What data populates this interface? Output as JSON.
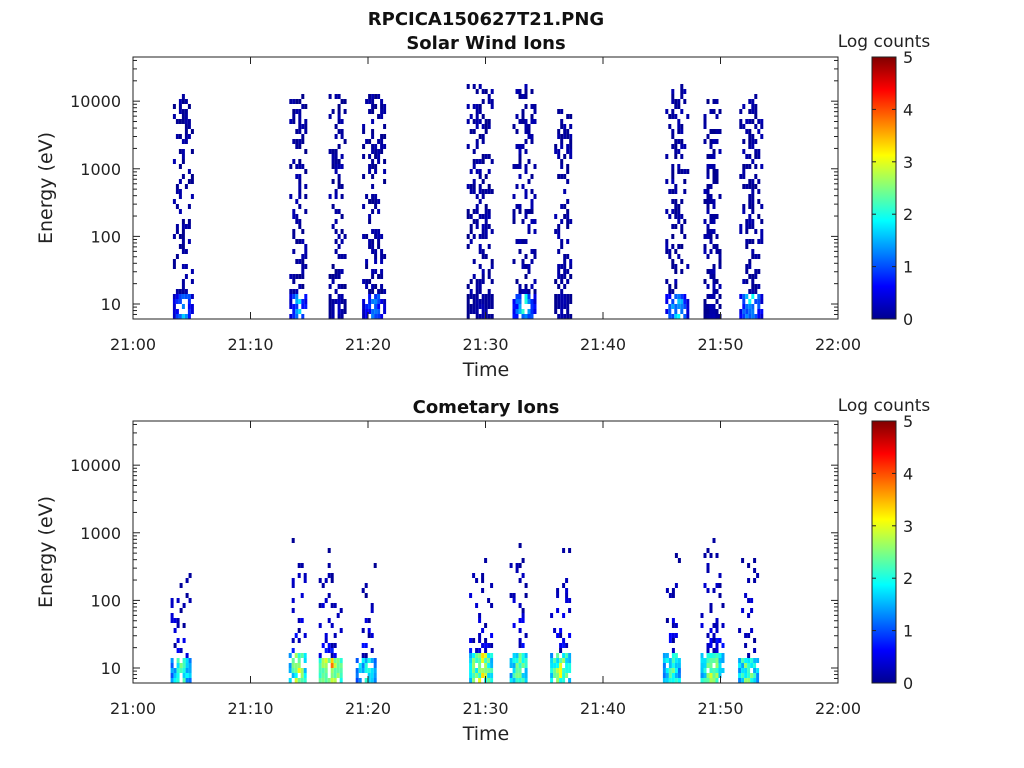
{
  "figure_title": "RPCICA150627T21.PNG",
  "chart_data": [
    {
      "type": "heatmap",
      "title": "Solar Wind Ions",
      "xlabel": "Time",
      "ylabel": "Energy (eV)",
      "x_ticks": [
        "21:00",
        "21:10",
        "21:20",
        "21:30",
        "21:40",
        "21:50",
        "22:00"
      ],
      "xlim": [
        "21:00",
        "22:00"
      ],
      "y_scale": "log",
      "y_ticks": [
        "10",
        "100",
        "1000",
        "10000"
      ],
      "ylim": [
        6,
        45000
      ],
      "colorbar": {
        "label": "Log counts",
        "min": 0,
        "max": 5,
        "ticks": [
          "0",
          "1",
          "2",
          "3",
          "4",
          "5"
        ],
        "colormap": "jet"
      },
      "bursts": [
        {
          "time_min": 4.2,
          "width_min": 1.6,
          "emax_ev": 15000,
          "low_energy_intensity": 1.8
        },
        {
          "time_min": 14.0,
          "width_min": 1.4,
          "emax_ev": 15000,
          "low_energy_intensity": 1.9
        },
        {
          "time_min": 17.3,
          "width_min": 1.3,
          "emax_ev": 15000,
          "low_energy_intensity": 0.4
        },
        {
          "time_min": 20.4,
          "width_min": 1.8,
          "emax_ev": 15000,
          "low_energy_intensity": 1.6
        },
        {
          "time_min": 29.5,
          "width_min": 2.2,
          "emax_ev": 20000,
          "low_energy_intensity": 0.3
        },
        {
          "time_min": 33.2,
          "width_min": 1.8,
          "emax_ev": 20000,
          "low_energy_intensity": 2.4
        },
        {
          "time_min": 36.5,
          "width_min": 1.3,
          "emax_ev": 9000,
          "low_energy_intensity": 0.3
        },
        {
          "time_min": 46.2,
          "width_min": 1.8,
          "emax_ev": 18000,
          "low_energy_intensity": 2.2
        },
        {
          "time_min": 49.2,
          "width_min": 1.3,
          "emax_ev": 15000,
          "low_energy_intensity": 0.3
        },
        {
          "time_min": 52.5,
          "width_min": 1.8,
          "emax_ev": 15000,
          "low_energy_intensity": 2.3
        }
      ]
    },
    {
      "type": "heatmap",
      "title": "Cometary Ions",
      "xlabel": "Time",
      "ylabel": "Energy (eV)",
      "x_ticks": [
        "21:00",
        "21:10",
        "21:20",
        "21:30",
        "21:40",
        "21:50",
        "22:00"
      ],
      "xlim": [
        "21:00",
        "22:00"
      ],
      "y_scale": "log",
      "y_ticks": [
        "10",
        "100",
        "1000",
        "10000"
      ],
      "ylim": [
        6,
        45000
      ],
      "colorbar": {
        "label": "Log counts",
        "min": 0,
        "max": 5,
        "ticks": [
          "0",
          "1",
          "2",
          "3",
          "4",
          "5"
        ],
        "colormap": "jet"
      },
      "bursts": [
        {
          "time_min": 4.0,
          "width_min": 1.6,
          "emax_ev": 400,
          "peak_intensity": 2.6
        },
        {
          "time_min": 14.0,
          "width_min": 1.5,
          "emax_ev": 900,
          "peak_intensity": 3.3
        },
        {
          "time_min": 16.8,
          "width_min": 2.0,
          "emax_ev": 600,
          "peak_intensity": 3.9
        },
        {
          "time_min": 19.8,
          "width_min": 1.7,
          "emax_ev": 400,
          "peak_intensity": 2.4
        },
        {
          "time_min": 29.5,
          "width_min": 1.8,
          "emax_ev": 1300,
          "peak_intensity": 3.5
        },
        {
          "time_min": 32.8,
          "width_min": 1.5,
          "emax_ev": 900,
          "peak_intensity": 2.9
        },
        {
          "time_min": 36.3,
          "width_min": 1.6,
          "emax_ev": 900,
          "peak_intensity": 3.2
        },
        {
          "time_min": 45.8,
          "width_min": 1.4,
          "emax_ev": 700,
          "peak_intensity": 2.7
        },
        {
          "time_min": 49.2,
          "width_min": 1.8,
          "emax_ev": 1200,
          "peak_intensity": 3.4
        },
        {
          "time_min": 52.3,
          "width_min": 1.6,
          "emax_ev": 600,
          "peak_intensity": 3.0
        }
      ]
    }
  ]
}
